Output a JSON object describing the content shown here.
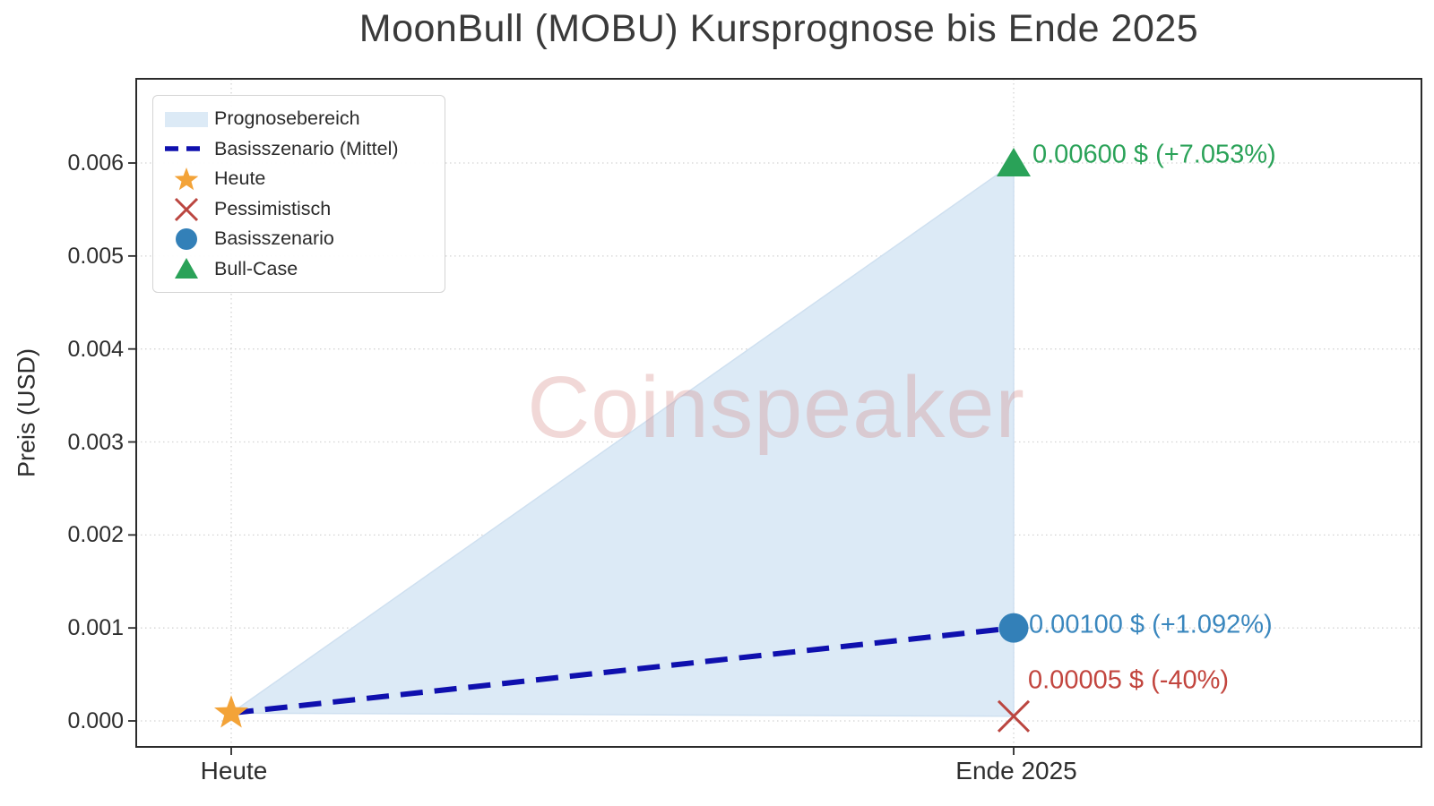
{
  "chart_data": {
    "type": "scatter",
    "title": "MoonBull (MOBU) Kursprognose bis Ende 2025",
    "ylabel": "Preis (USD)",
    "watermark": "Coinspeaker",
    "x_categories": [
      "Heute",
      "Ende 2025"
    ],
    "yticks": [
      0,
      0.001,
      0.002,
      0.003,
      0.004,
      0.005,
      0.006
    ],
    "ytick_labels": [
      "0.000",
      "0.001",
      "0.002",
      "0.003",
      "0.004",
      "0.005",
      "0.006"
    ],
    "ylim": [
      -0.00028,
      0.0069
    ],
    "grid": true,
    "legend_position": "upper left",
    "area": {
      "name": "Prognosebereich",
      "color": "#DCEAF6",
      "edge_color": "#cfe0f0",
      "from_x": "Heute",
      "from_y": 8.4e-05,
      "to_x": "Ende 2025",
      "to_y_low": 5e-05,
      "to_y_high": 0.006
    },
    "baseline": {
      "name": "Basisszenario (Mittel)",
      "color": "#0F10AE",
      "style": "dashed",
      "from_x": "Heute",
      "from_y": 8.4e-05,
      "to_x": "Ende 2025",
      "to_y": 0.001
    },
    "points": [
      {
        "name": "Heute",
        "x": "Heute",
        "y": 8.4e-05,
        "marker": "star",
        "color": "#F3A338",
        "annotation": null
      },
      {
        "name": "Pessimistisch",
        "x": "Ende 2025",
        "y": 5e-05,
        "marker": "x",
        "color": "#BB4640",
        "annotation": "0.00005 $ (-40%)",
        "annotation_color": "#C2453E"
      },
      {
        "name": "Basisszenario",
        "x": "Ende 2025",
        "y": 0.001,
        "marker": "circle",
        "color": "#3380B8",
        "annotation": "0.00100 $ (+1.092%)",
        "annotation_color": "#3A87BE"
      },
      {
        "name": "Bull-Case",
        "x": "Ende 2025",
        "y": 0.006,
        "marker": "triangle",
        "color": "#2AA258",
        "annotation": "0.00600 $ (+7.053%)",
        "annotation_color": "#2AA258"
      }
    ],
    "legend": [
      {
        "label": "Prognosebereich",
        "swatch": "patch",
        "color": "#DCEAF6"
      },
      {
        "label": "Basisszenario (Mittel)",
        "swatch": "dashed-line",
        "color": "#0F10AE"
      },
      {
        "label": "Heute",
        "swatch": "star",
        "color": "#F3A338"
      },
      {
        "label": "Pessimistisch",
        "swatch": "x",
        "color": "#BB4640"
      },
      {
        "label": "Basisszenario",
        "swatch": "circle",
        "color": "#3380B8"
      },
      {
        "label": "Bull-Case",
        "swatch": "triangle",
        "color": "#2AA258"
      }
    ]
  }
}
